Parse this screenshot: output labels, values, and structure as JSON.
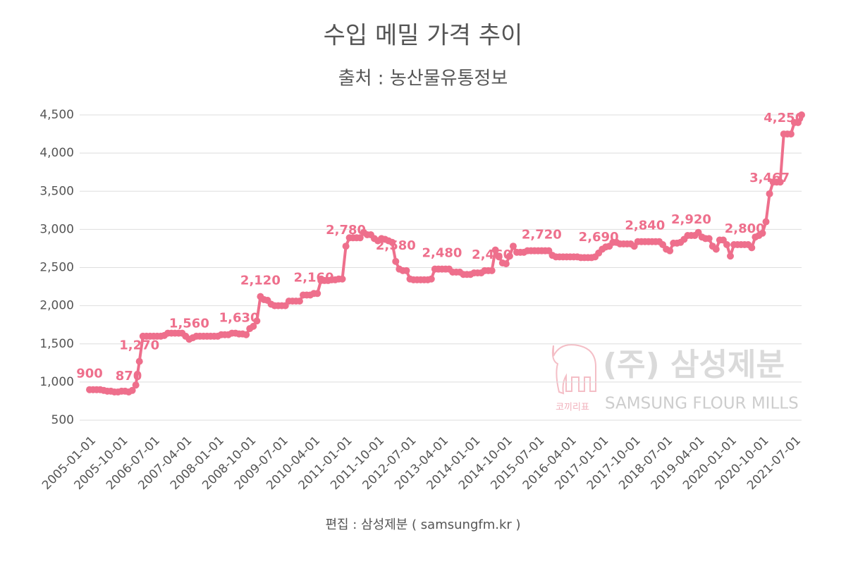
{
  "chart_data": {
    "type": "line",
    "title": "수입 메밀 가격 추이",
    "subtitle": "출처 : 농산물유통정보",
    "footer": "편집 : 삼성제분 ( samsungfm.kr )",
    "watermark": {
      "company": "(주) 삼성제분",
      "english": "SAMSUNG FLOUR MILLS",
      "brand": "코끼리표"
    },
    "color": "#ee6f8c",
    "grid": true,
    "ylim": [
      500,
      4500
    ],
    "yticks": [
      500,
      {
        "value": 1000,
        "label": "1,000"
      },
      {
        "value": 1500,
        "label": "1,500"
      },
      {
        "value": 2000,
        "label": "2,000"
      },
      {
        "value": 2500,
        "label": "2,500"
      },
      {
        "value": 3000,
        "label": "3,000"
      },
      {
        "value": 3500,
        "label": "3,500"
      },
      {
        "value": 4000,
        "label": "4,000"
      },
      {
        "value": 4500,
        "label": "4,500"
      }
    ],
    "categories": [
      "2005-01-01",
      null,
      null,
      null,
      null,
      null,
      null,
      null,
      null,
      "2005-10-01",
      null,
      null,
      null,
      null,
      null,
      null,
      null,
      null,
      "2006-07-01",
      null,
      null,
      null,
      null,
      null,
      null,
      null,
      null,
      "2007-04-01",
      null,
      null,
      null,
      null,
      null,
      null,
      null,
      null,
      "2008-01-01",
      null,
      null,
      null,
      null,
      null,
      null,
      null,
      null,
      "2008-10-01",
      null,
      null,
      null,
      null,
      null,
      null,
      null,
      null,
      "2009-07-01",
      null,
      null,
      null,
      null,
      null,
      null,
      null,
      null,
      "2010-04-01",
      null,
      null,
      null,
      null,
      null,
      null,
      null,
      null,
      "2011-01-01",
      null,
      null,
      null,
      null,
      null,
      null,
      null,
      null,
      "2011-10-01",
      null,
      null,
      null,
      null,
      null,
      null,
      null,
      null,
      "2012-07-01",
      null,
      null,
      null,
      null,
      null,
      null,
      null,
      null,
      "2013-04-01",
      null,
      null,
      null,
      null,
      null,
      null,
      null,
      null,
      "2014-01-01",
      null,
      null,
      null,
      null,
      null,
      null,
      null,
      null,
      "2014-10-01",
      null,
      null,
      null,
      null,
      null,
      null,
      null,
      null,
      "2015-07-01",
      null,
      null,
      null,
      null,
      null,
      null,
      null,
      null,
      "2016-04-01",
      null,
      null,
      null,
      null,
      null,
      null,
      null,
      null,
      "2017-01-01",
      null,
      null,
      null,
      null,
      null,
      null,
      null,
      null,
      "2017-10-01",
      null,
      null,
      null,
      null,
      null,
      null,
      null,
      null,
      "2018-07-01",
      null,
      null,
      null,
      null,
      null,
      null,
      null,
      null,
      "2019-04-01",
      null,
      null,
      null,
      null,
      null,
      null,
      null,
      null,
      "2020-01-01",
      null,
      null,
      null,
      null,
      null,
      null,
      null,
      null,
      "2020-10-01",
      null,
      null,
      null,
      null,
      null,
      null,
      null,
      null,
      "2021-07-01",
      null,
      null
    ],
    "values": [
      900,
      900,
      900,
      900,
      890,
      880,
      880,
      870,
      870,
      880,
      880,
      870,
      890,
      960,
      1270,
      1600,
      1600,
      1600,
      1600,
      1600,
      1600,
      1610,
      1640,
      1640,
      1640,
      1640,
      1640,
      1600,
      1560,
      1580,
      1600,
      1600,
      1600,
      1600,
      1600,
      1600,
      1600,
      1620,
      1620,
      1620,
      1640,
      1640,
      1630,
      1630,
      1620,
      1700,
      1730,
      1800,
      2120,
      2080,
      2070,
      2020,
      2000,
      2000,
      2000,
      2000,
      2060,
      2060,
      2060,
      2060,
      2140,
      2140,
      2140,
      2160,
      2160,
      2330,
      2330,
      2330,
      2340,
      2340,
      2350,
      2350,
      2780,
      2890,
      2890,
      2890,
      2890,
      2960,
      2930,
      2930,
      2880,
      2850,
      2880,
      2870,
      2850,
      2830,
      2580,
      2480,
      2460,
      2460,
      2350,
      2340,
      2340,
      2340,
      2340,
      2340,
      2350,
      2480,
      2480,
      2480,
      2480,
      2480,
      2440,
      2440,
      2440,
      2410,
      2410,
      2410,
      2430,
      2430,
      2430,
      2460,
      2460,
      2460,
      2730,
      2640,
      2560,
      2550,
      2650,
      2780,
      2700,
      2700,
      2700,
      2720,
      2720,
      2720,
      2720,
      2720,
      2720,
      2720,
      2660,
      2640,
      2640,
      2640,
      2640,
      2640,
      2640,
      2640,
      2630,
      2630,
      2630,
      2630,
      2640,
      2690,
      2740,
      2770,
      2780,
      2830,
      2830,
      2810,
      2810,
      2810,
      2810,
      2780,
      2840,
      2840,
      2840,
      2840,
      2840,
      2840,
      2840,
      2800,
      2740,
      2720,
      2820,
      2820,
      2830,
      2870,
      2920,
      2920,
      2920,
      2960,
      2900,
      2880,
      2880,
      2780,
      2740,
      2860,
      2860,
      2800,
      2650,
      2800,
      2800,
      2800,
      2800,
      2800,
      2760,
      2900,
      2920,
      2950,
      3100,
      3467,
      3620,
      3620,
      3620,
      4250,
      4250,
      4250,
      4400,
      4400,
      4500
    ],
    "value_labels": [
      "900",
      null,
      null,
      null,
      null,
      null,
      null,
      null,
      null,
      null,
      null,
      "870",
      null,
      null,
      "1,270",
      null,
      null,
      null,
      null,
      null,
      null,
      null,
      null,
      null,
      null,
      null,
      null,
      null,
      "1,560",
      null,
      null,
      null,
      null,
      null,
      null,
      null,
      null,
      null,
      null,
      null,
      null,
      null,
      "1,630",
      null,
      null,
      null,
      null,
      null,
      "2,120",
      null,
      null,
      null,
      null,
      null,
      null,
      null,
      null,
      null,
      null,
      null,
      null,
      null,
      null,
      "2,160",
      null,
      null,
      null,
      null,
      null,
      null,
      null,
      null,
      "2,780",
      null,
      null,
      null,
      null,
      null,
      null,
      null,
      null,
      null,
      null,
      null,
      null,
      null,
      "2,580",
      null,
      null,
      null,
      null,
      null,
      null,
      null,
      null,
      null,
      null,
      null,
      null,
      "2,480",
      null,
      null,
      null,
      null,
      null,
      null,
      null,
      null,
      null,
      null,
      null,
      null,
      null,
      "2,460",
      null,
      null,
      null,
      null,
      null,
      null,
      null,
      null,
      null,
      null,
      null,
      null,
      null,
      "2,720",
      null,
      null,
      null,
      null,
      null,
      null,
      null,
      null,
      null,
      null,
      null,
      null,
      null,
      null,
      null,
      "2,690",
      null,
      null,
      null,
      null,
      null,
      null,
      null,
      null,
      null,
      null,
      null,
      null,
      "2,840",
      null,
      null,
      null,
      null,
      null,
      null,
      null,
      null,
      null,
      null,
      null,
      null,
      "2,920",
      null,
      null,
      null,
      null,
      null,
      null,
      null,
      null,
      null,
      null,
      null,
      null,
      null,
      null,
      "2,800",
      null,
      null,
      null,
      null,
      null,
      null,
      "3,467",
      null,
      null,
      null,
      "4,250",
      null,
      null,
      null,
      null,
      null
    ]
  }
}
